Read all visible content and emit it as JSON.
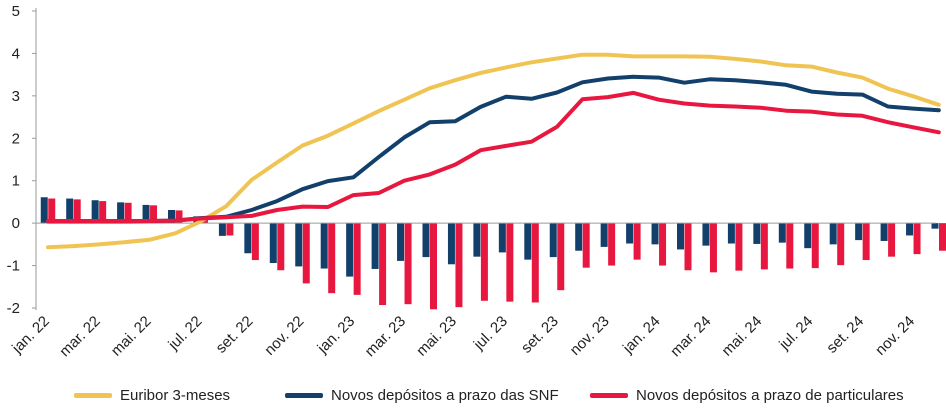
{
  "chart_data": {
    "type": "bar+line",
    "title": "",
    "xlabel": "",
    "ylabel": "",
    "ylim": [
      -2,
      5
    ],
    "yticks": [
      "-2",
      "-1",
      "0",
      "1",
      "2",
      "3",
      "4",
      "5"
    ],
    "yticks_values": [
      -2,
      -1,
      0,
      1,
      2,
      3,
      4,
      5
    ],
    "xtick_labels": [
      "jan. 22",
      "mar. 22",
      "mai. 22",
      "jul. 22",
      "set. 22",
      "nov. 22",
      "jan. 23",
      "mar. 23",
      "mai. 23",
      "jul. 23",
      "set. 23",
      "nov. 23",
      "jan. 24",
      "mar. 24",
      "mai. 24",
      "jul. 24",
      "set. 24",
      "nov. 24"
    ],
    "xtick_months": [
      0,
      2,
      4,
      6,
      8,
      10,
      12,
      14,
      16,
      18,
      20,
      22,
      24,
      26,
      28,
      30,
      32,
      34
    ],
    "months": [
      "jan. 22",
      "fev. 22",
      "mar. 22",
      "abr. 22",
      "mai. 22",
      "jun. 22",
      "jul. 22",
      "ago. 22",
      "set. 22",
      "out. 22",
      "nov. 22",
      "dez. 22",
      "jan. 23",
      "fev. 23",
      "mar. 23",
      "abr. 23",
      "mai. 23",
      "jun. 23",
      "jul. 23",
      "ago. 23",
      "set. 23",
      "out. 23",
      "nov. 23",
      "dez. 23",
      "jan. 24",
      "fev. 24",
      "mar. 24",
      "abr. 24",
      "mai. 24",
      "jun. 24",
      "jul. 24",
      "ago. 24",
      "set. 24",
      "out. 24",
      "nov. 24",
      "dez. 24"
    ],
    "grid": false,
    "legend_position": "bottom",
    "lines": [
      {
        "name": "Euribor 3-meses",
        "color": "#F0C453",
        "values": [
          -0.57,
          -0.54,
          -0.5,
          -0.45,
          -0.39,
          -0.24,
          0.04,
          0.4,
          1.02,
          1.43,
          1.83,
          2.06,
          2.35,
          2.64,
          2.91,
          3.18,
          3.37,
          3.54,
          3.67,
          3.79,
          3.88,
          3.97,
          3.97,
          3.93,
          3.93,
          3.93,
          3.92,
          3.87,
          3.81,
          3.72,
          3.69,
          3.55,
          3.43,
          3.17,
          2.99,
          2.79
        ]
      },
      {
        "name": "Novos depósitos a prazo das SNF",
        "color": "#12406B",
        "values": [
          0.04,
          0.04,
          0.04,
          0.04,
          0.05,
          0.06,
          0.12,
          0.15,
          0.31,
          0.52,
          0.8,
          0.99,
          1.08,
          1.56,
          2.02,
          2.38,
          2.4,
          2.74,
          2.98,
          2.93,
          3.08,
          3.32,
          3.41,
          3.45,
          3.43,
          3.31,
          3.39,
          3.37,
          3.32,
          3.26,
          3.1,
          3.05,
          3.03,
          2.75,
          2.7,
          2.66
        ]
      },
      {
        "name": "Novos depósitos a prazo de particulares",
        "color": "#E8173F",
        "values": [
          0.05,
          0.05,
          0.05,
          0.05,
          0.05,
          0.06,
          0.11,
          0.14,
          0.17,
          0.31,
          0.39,
          0.38,
          0.66,
          0.71,
          1.0,
          1.15,
          1.38,
          1.72,
          1.82,
          1.92,
          2.27,
          2.92,
          2.97,
          3.07,
          2.91,
          2.82,
          2.77,
          2.75,
          2.72,
          2.65,
          2.63,
          2.56,
          2.53,
          2.38,
          2.26,
          2.14
        ]
      }
    ],
    "bars": [
      {
        "name": "Novos depósitos a prazo das SNF",
        "color": "#12406B",
        "values": [
          0.61,
          0.58,
          0.54,
          0.49,
          0.43,
          0.31,
          0.16,
          -0.3,
          -0.71,
          -0.94,
          -1.02,
          -1.07,
          -1.26,
          -1.08,
          -0.89,
          -0.8,
          -0.97,
          -0.79,
          -0.69,
          -0.86,
          -0.8,
          -0.65,
          -0.56,
          -0.48,
          -0.5,
          -0.62,
          -0.53,
          -0.48,
          -0.49,
          -0.46,
          -0.59,
          -0.5,
          -0.4,
          -0.42,
          -0.29,
          -0.13
        ]
      },
      {
        "name": "Novos depósitos a prazo de particulares",
        "color": "#E8173F",
        "values": [
          0.58,
          0.56,
          0.52,
          0.48,
          0.42,
          0.3,
          0.13,
          -0.29,
          -0.87,
          -1.11,
          -1.42,
          -1.65,
          -1.69,
          -1.93,
          -1.91,
          -2.03,
          -1.98,
          -1.83,
          -1.85,
          -1.87,
          -1.58,
          -1.05,
          -1.0,
          -0.86,
          -1.0,
          -1.11,
          -1.16,
          -1.12,
          -1.09,
          -1.07,
          -1.06,
          -0.99,
          -0.87,
          -0.79,
          -0.73,
          -0.65
        ]
      }
    ]
  },
  "legend": {
    "items": [
      {
        "label": "Euribor 3-meses",
        "color": "#F0C453"
      },
      {
        "label": "Novos depósitos a prazo das SNF",
        "color": "#12406B"
      },
      {
        "label": "Novos depósitos a prazo de particulares",
        "color": "#E8173F"
      }
    ]
  }
}
